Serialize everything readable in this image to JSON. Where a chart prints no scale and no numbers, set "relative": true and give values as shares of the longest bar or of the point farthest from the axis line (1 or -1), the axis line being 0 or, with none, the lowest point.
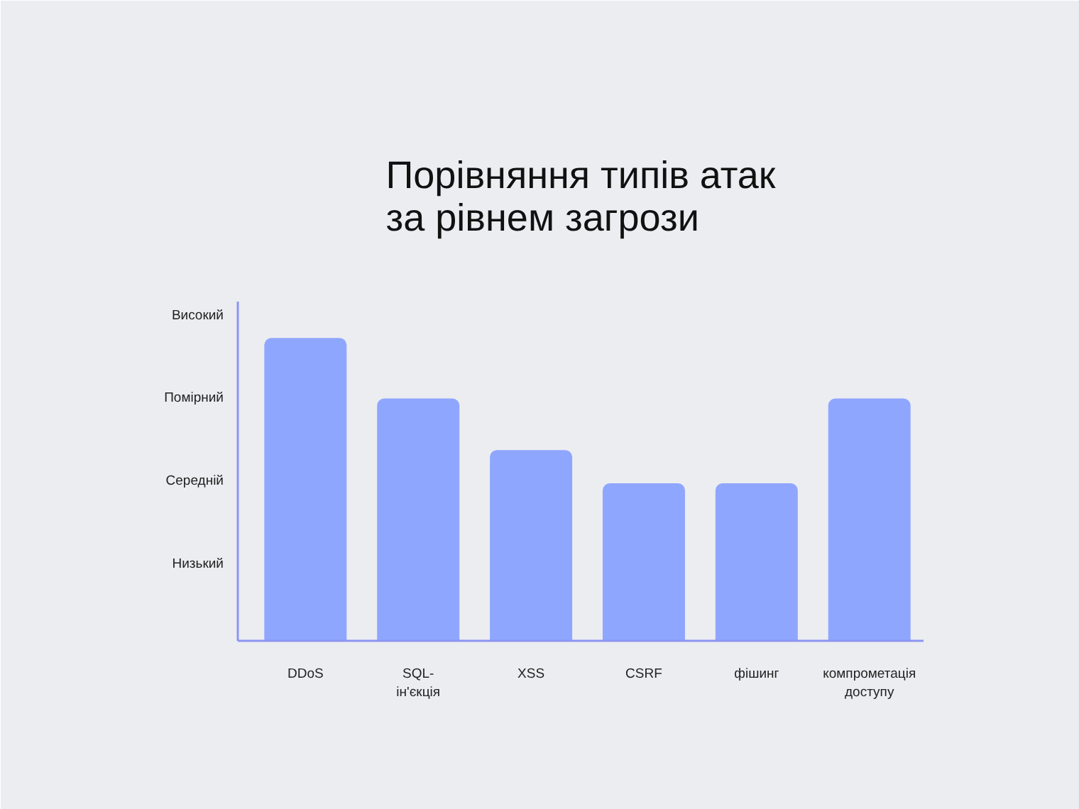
{
  "chart_data": {
    "type": "bar",
    "title": "Порівняння типів атак\nза рівнем загрози",
    "categories": [
      "DDoS",
      "SQL-\nін'єкція",
      "XSS",
      "CSRF",
      "фішинг",
      "компрометація\nдоступу"
    ],
    "values": [
      1,
      0.8,
      0.63,
      0.52,
      0.52,
      0.8
    ],
    "relative": true,
    "color": "#8fa6ff",
    "annotations": [
      "Високий",
      "Помірний",
      "Середній",
      "Низький"
    ]
  }
}
